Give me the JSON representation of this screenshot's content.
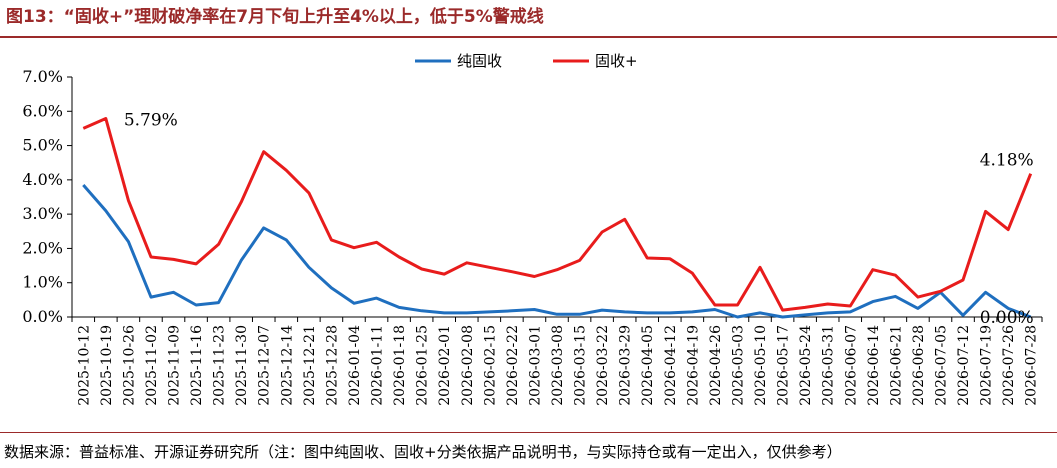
{
  "figure": {
    "title": "图13：“固收+”理财破净率在7月下旬上升至4%以上，低于5%警戒线",
    "source": "数据来源：普益标准、开源证券研究所（注：图中纯固收、固收+分类依据产品说明书，与实际持仓或有一定出入，仅供参考）"
  },
  "chart_data": {
    "type": "line",
    "title": "",
    "xlabel": "",
    "ylabel": "",
    "ylim": [
      0,
      7
    ],
    "yticks": [
      "0.0%",
      "1.0%",
      "2.0%",
      "3.0%",
      "4.0%",
      "5.0%",
      "6.0%",
      "7.0%"
    ],
    "grid": false,
    "legend_position": "top-center",
    "categories": [
      "2025-10-12",
      "2025-10-19",
      "2025-10-26",
      "2025-11-02",
      "2025-11-09",
      "2025-11-16",
      "2025-11-23",
      "2025-11-30",
      "2025-12-07",
      "2025-12-14",
      "2025-12-21",
      "2025-12-28",
      "2026-01-04",
      "2026-01-11",
      "2026-01-18",
      "2026-01-25",
      "2026-02-01",
      "2026-02-08",
      "2026-02-15",
      "2026-02-22",
      "2026-03-01",
      "2026-03-08",
      "2026-03-15",
      "2026-03-22",
      "2026-03-29",
      "2026-04-05",
      "2026-04-12",
      "2026-04-19",
      "2026-04-26",
      "2026-05-03",
      "2026-05-10",
      "2026-05-17",
      "2026-05-24",
      "2026-05-31",
      "2026-06-07",
      "2026-06-14",
      "2026-06-21",
      "2026-06-28",
      "2026-07-05",
      "2026-07-12",
      "2026-07-19",
      "2026-07-26",
      "2026-07-28"
    ],
    "xtick_labels": [
      "2025-10-12",
      "2025-10-19",
      "2025-10-26",
      "2025-11-02",
      "2025-11-09",
      "2025-11-16",
      "2025-11-23",
      "2025-11-30",
      "2025-12-07",
      "2025-12-14",
      "2025-12-21",
      "2025-12-28",
      "2026-01-04",
      "2026-01-11",
      "2026-01-18",
      "2026-01-25",
      "2026-02-01",
      "2026-02-08",
      "2026-02-15",
      "2026-02-22",
      "2026-03-01",
      "2026-03-08",
      "2026-03-15",
      "2026-03-22",
      "2026-03-29",
      "2026-04-05",
      "2026-04-12",
      "2026-04-19",
      "2026-04-26",
      "2026-05-03",
      "2026-05-10",
      "2026-05-17",
      "2026-05-24",
      "2026-05-31",
      "2026-06-07",
      "2026-06-14",
      "2026-06-21",
      "2026-06-28",
      "2026-07-05",
      "2026-07-12",
      "2026-07-19",
      "2026-07-26",
      "2026-07-28"
    ],
    "series": [
      {
        "name": "纯固收",
        "color": "#1f6fbf",
        "values": [
          3.85,
          3.1,
          2.2,
          0.58,
          0.72,
          0.35,
          0.42,
          1.65,
          2.6,
          2.25,
          1.45,
          0.85,
          0.4,
          0.55,
          0.28,
          0.18,
          0.12,
          0.12,
          0.15,
          0.18,
          0.22,
          0.08,
          0.08,
          0.2,
          0.15,
          0.12,
          0.12,
          0.15,
          0.22,
          0.0,
          0.12,
          0.0,
          0.06,
          0.12,
          0.15,
          0.45,
          0.6,
          0.25,
          0.72,
          0.05,
          0.72,
          0.25,
          0.0
        ]
      },
      {
        "name": "固收+",
        "color": "#e81c1c",
        "values": [
          5.5,
          5.79,
          3.4,
          1.75,
          1.68,
          1.55,
          2.12,
          3.35,
          4.82,
          4.28,
          3.62,
          2.25,
          2.02,
          2.18,
          1.75,
          1.4,
          1.25,
          1.58,
          1.45,
          1.32,
          1.18,
          1.38,
          1.65,
          2.48,
          2.85,
          1.72,
          1.7,
          1.28,
          0.35,
          0.35,
          1.45,
          0.2,
          0.28,
          0.38,
          0.32,
          1.38,
          1.22,
          0.58,
          0.75,
          1.08,
          3.08,
          2.55,
          4.18
        ]
      }
    ],
    "annotations": [
      {
        "series": 1,
        "index": 1,
        "text": "5.79%"
      },
      {
        "series": 1,
        "index": 42,
        "text": "4.18%"
      },
      {
        "series": 0,
        "index": 42,
        "text": "0.00%"
      }
    ]
  }
}
